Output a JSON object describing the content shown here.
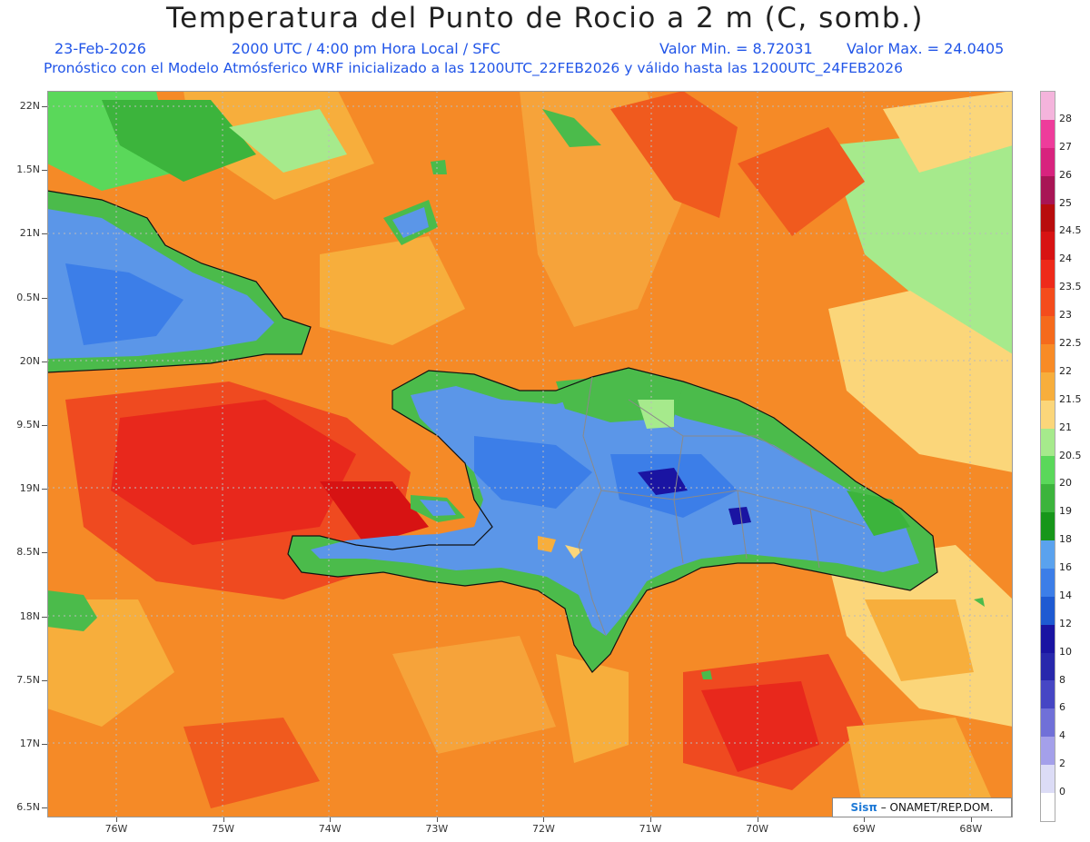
{
  "title": "Temperatura del Punto de Rocio a 2 m (C, somb.)",
  "date": "23-Feb-2026",
  "time": "2000 UTC / 4:00 pm Hora Local / SFC",
  "min_label": "Valor Min. = 8.72031",
  "max_label": "Valor Max. = 24.0405",
  "init_line": "Pronóstico con el Modelo Atmósferico WRF inicializado a las 1200UTC_22FEB2026 y válido hasta las  1200UTC_24FEB2026",
  "credit_brand": "Sisπ",
  "credit_rest": " – ONAMET/REP.DOM.",
  "lat_labels": [
    "22N",
    "1.5N",
    "21N",
    "0.5N",
    "20N",
    "9.5N",
    "19N",
    "8.5N",
    "18N",
    "7.5N",
    "17N",
    "6.5N"
  ],
  "lon_labels": [
    "76W",
    "75W",
    "74W",
    "73W",
    "72W",
    "71W",
    "70W",
    "69W",
    "68W"
  ],
  "colorbar": {
    "labels": [
      "28",
      "27",
      "26",
      "25",
      "24.5",
      "24",
      "23.5",
      "23",
      "22.5",
      "22",
      "21.5",
      "21",
      "20.5",
      "20",
      "19",
      "18",
      "16",
      "14",
      "12",
      "10",
      "8",
      "6",
      "4",
      "2",
      "0"
    ],
    "colors": [
      "#f4b4dc",
      "#ee3c9b",
      "#d8237e",
      "#a81555",
      "#b80d0d",
      "#d71313",
      "#ee2a1a",
      "#f44c1c",
      "#f56a1c",
      "#f88b26",
      "#f7ae3c",
      "#fbd67a",
      "#a6ea8c",
      "#5ad85a",
      "#3cb43c",
      "#17961a",
      "#5aa2ee",
      "#3c7ee8",
      "#1e5ad2",
      "#1a14a2",
      "#2828ac",
      "#4646c4",
      "#7070d8",
      "#a4a0ea",
      "#dcdcf6",
      "#ffffff"
    ]
  },
  "legend_colors": {
    "ocean": "#f58a27",
    "land_blue": "#5b96e8",
    "coast_green": "#4bbb4b",
    "hot_red": "#e8281c",
    "accent_blue": "#2155e8"
  }
}
